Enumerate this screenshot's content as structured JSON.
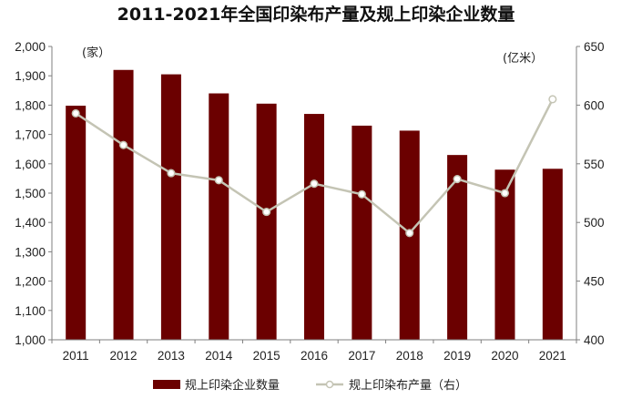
{
  "chart_data": {
    "type": "bar",
    "title": "2011-2021年全国印染布产量及规上印染企业数量",
    "categories": [
      "2011",
      "2012",
      "2013",
      "2014",
      "2015",
      "2016",
      "2017",
      "2018",
      "2019",
      "2020",
      "2021"
    ],
    "series": [
      {
        "name": "规上印染企业数量",
        "type": "bar",
        "axis": "left",
        "color": "#6b0000",
        "values": [
          1798,
          1920,
          1905,
          1840,
          1805,
          1770,
          1730,
          1713,
          1630,
          1580,
          1583
        ]
      },
      {
        "name": "规上印染布产量（右）",
        "type": "line",
        "axis": "right",
        "color": "#c4c4b4",
        "values": [
          593,
          566,
          542,
          536,
          509,
          533,
          524,
          491,
          537,
          525,
          605
        ]
      }
    ],
    "y_left": {
      "unit": "(家）",
      "min": 1000,
      "max": 2000,
      "step": 100,
      "ticks": [
        "1,000",
        "1,100",
        "1,200",
        "1,300",
        "1,400",
        "1,500",
        "1,600",
        "1,700",
        "1,800",
        "1,900",
        "2,000"
      ]
    },
    "y_right": {
      "unit": "(亿米）",
      "min": 400,
      "max": 650,
      "step": 50,
      "ticks": [
        "400",
        "450",
        "500",
        "550",
        "600",
        "650"
      ]
    },
    "legend_position": "bottom",
    "grid": false
  }
}
